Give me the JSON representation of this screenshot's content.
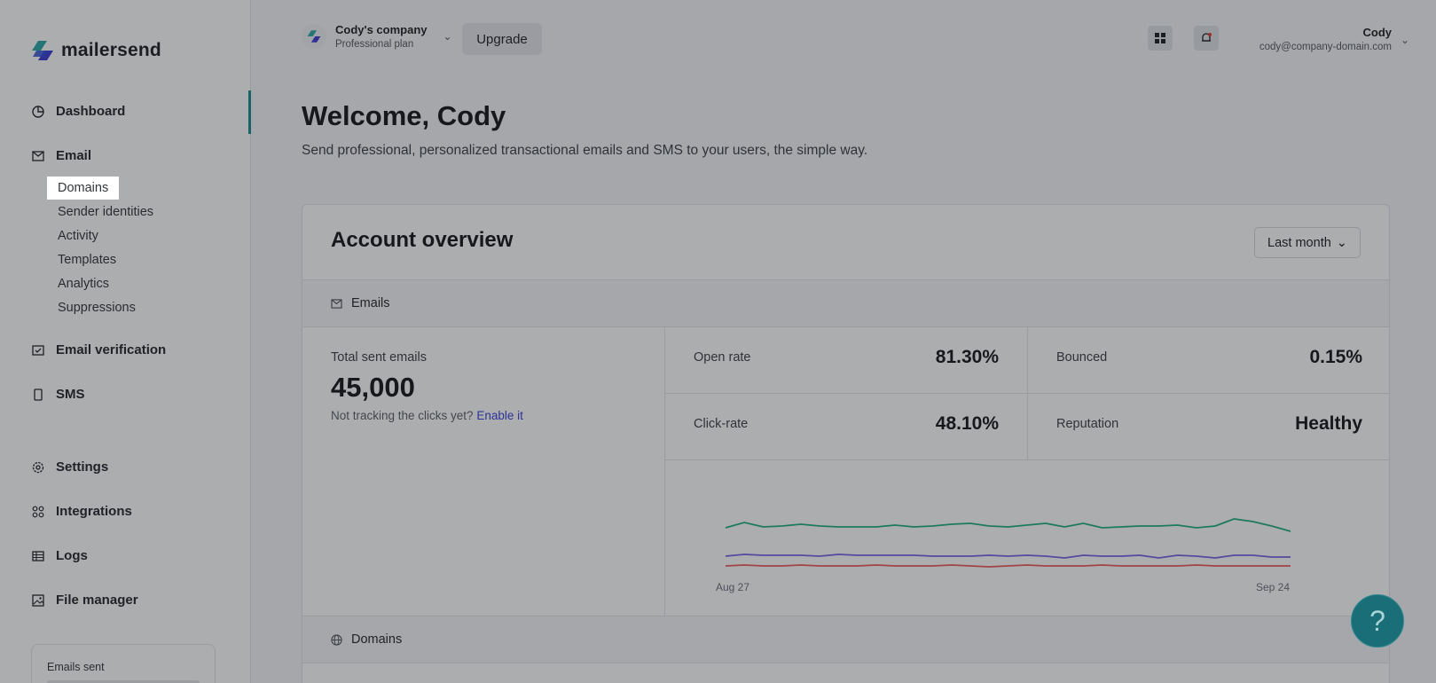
{
  "brand": {
    "name": "mailersend"
  },
  "sidebar": {
    "items": [
      {
        "label": "Dashboard",
        "icon": "dashboard-icon"
      },
      {
        "label": "Email",
        "icon": "mail-icon"
      },
      {
        "label": "Email verification",
        "icon": "email-verification-icon"
      },
      {
        "label": "SMS",
        "icon": "phone-icon"
      },
      {
        "label": "Settings",
        "icon": "gear-icon"
      },
      {
        "label": "Integrations",
        "icon": "integrations-icon"
      },
      {
        "label": "Logs",
        "icon": "table-icon"
      },
      {
        "label": "File manager",
        "icon": "image-icon"
      }
    ],
    "email_sub": [
      "Domains",
      "Sender identities",
      "Activity",
      "Templates",
      "Analytics",
      "Suppressions"
    ],
    "usage_label": "Emails sent"
  },
  "topbar": {
    "company_name": "Cody's company",
    "plan": "Professional plan",
    "upgrade": "Upgrade",
    "user_name": "Cody",
    "user_email": "cody@company-domain.com"
  },
  "main": {
    "welcome": "Welcome, Cody",
    "subtitle": "Send professional, personalized transactional emails and SMS to your users, the simple way."
  },
  "overview": {
    "title": "Account overview",
    "period": "Last month",
    "emails_section": "Emails",
    "domains_section": "Domains",
    "total_label": "Total sent emails",
    "total_value": "45,000",
    "tracking_note": "Not tracking the clicks yet?",
    "tracking_link": "Enable it",
    "stats": [
      {
        "label": "Open rate",
        "value": "81.30%"
      },
      {
        "label": "Bounced",
        "value": "0.15%"
      },
      {
        "label": "Click-rate",
        "value": "48.10%"
      },
      {
        "label": "Reputation",
        "value": "Healthy"
      }
    ]
  },
  "chart_data": {
    "type": "line",
    "x_start_label": "Aug 27",
    "x_end_label": "Sep 24",
    "colors": [
      "#22b07d",
      "#7b61e6",
      "#ee5b5b"
    ],
    "series": [
      {
        "values": [
          74,
          80,
          75,
          76,
          78,
          76,
          75,
          75,
          75,
          77,
          75,
          76,
          78,
          79,
          76,
          75,
          77,
          79,
          75,
          79,
          74,
          75,
          76,
          76,
          77,
          74,
          76,
          84,
          81,
          76,
          70
        ]
      },
      {
        "values": [
          42,
          44,
          43,
          43,
          43,
          42,
          44,
          43,
          43,
          43,
          43,
          42,
          42,
          42,
          43,
          42,
          43,
          42,
          40,
          43,
          42,
          42,
          43,
          40,
          43,
          42,
          40,
          43,
          43,
          41,
          41
        ]
      },
      {
        "values": [
          31,
          32,
          31,
          31,
          32,
          31,
          31,
          31,
          32,
          31,
          31,
          31,
          32,
          31,
          30,
          31,
          32,
          31,
          31,
          31,
          32,
          31,
          31,
          31,
          31,
          32,
          31,
          31,
          31,
          31,
          31
        ]
      }
    ]
  },
  "help": {
    "label": "?"
  }
}
